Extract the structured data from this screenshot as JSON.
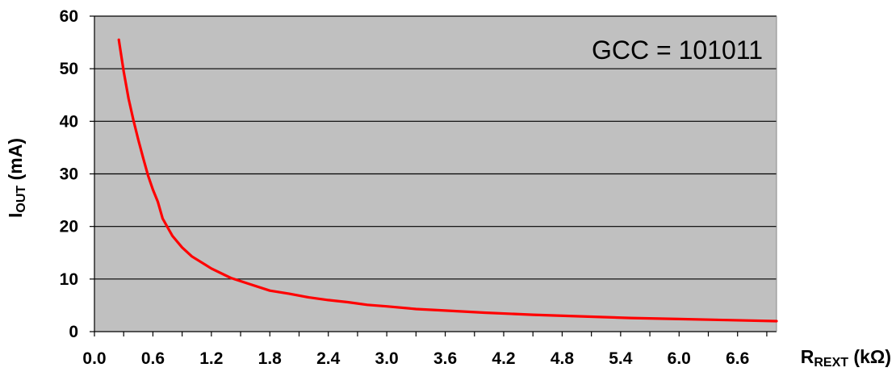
{
  "chart_data": {
    "type": "line",
    "xlabel": {
      "main": "R",
      "sub": "REXT",
      "unit": " (kΩ)"
    },
    "ylabel": {
      "main": "I",
      "sub": "OUT",
      "unit": " (mA)"
    },
    "annotation": "GCC = 101011",
    "xlim": [
      0,
      7.0
    ],
    "ylim": [
      0,
      60
    ],
    "x_ticks": [
      "0.0",
      "0.6",
      "1.2",
      "1.8",
      "2.4",
      "3.0",
      "3.6",
      "4.2",
      "4.8",
      "5.4",
      "6.0",
      "6.6"
    ],
    "y_ticks": [
      "0",
      "10",
      "20",
      "30",
      "40",
      "50",
      "60"
    ],
    "grid": "horizontal",
    "plot_background": "#C0C0C0",
    "series": [
      {
        "color": "#FF0000",
        "x": [
          0.25,
          0.3,
          0.35,
          0.4,
          0.45,
          0.5,
          0.55,
          0.6,
          0.65,
          0.7,
          0.8,
          0.9,
          1.0,
          1.2,
          1.4,
          1.6,
          1.8,
          2.0,
          2.2,
          2.4,
          2.6,
          2.8,
          3.0,
          3.3,
          3.6,
          4.0,
          4.5,
          5.0,
          5.5,
          6.0,
          6.5,
          7.0
        ],
        "y": [
          55.5,
          49.5,
          44.3,
          40.2,
          36.5,
          33.0,
          29.7,
          27.0,
          24.7,
          21.5,
          18.2,
          16.0,
          14.3,
          12.0,
          10.2,
          9.0,
          7.8,
          7.2,
          6.5,
          6.0,
          5.6,
          5.1,
          4.8,
          4.3,
          4.0,
          3.6,
          3.2,
          2.9,
          2.6,
          2.4,
          2.2,
          2.0
        ]
      }
    ]
  }
}
